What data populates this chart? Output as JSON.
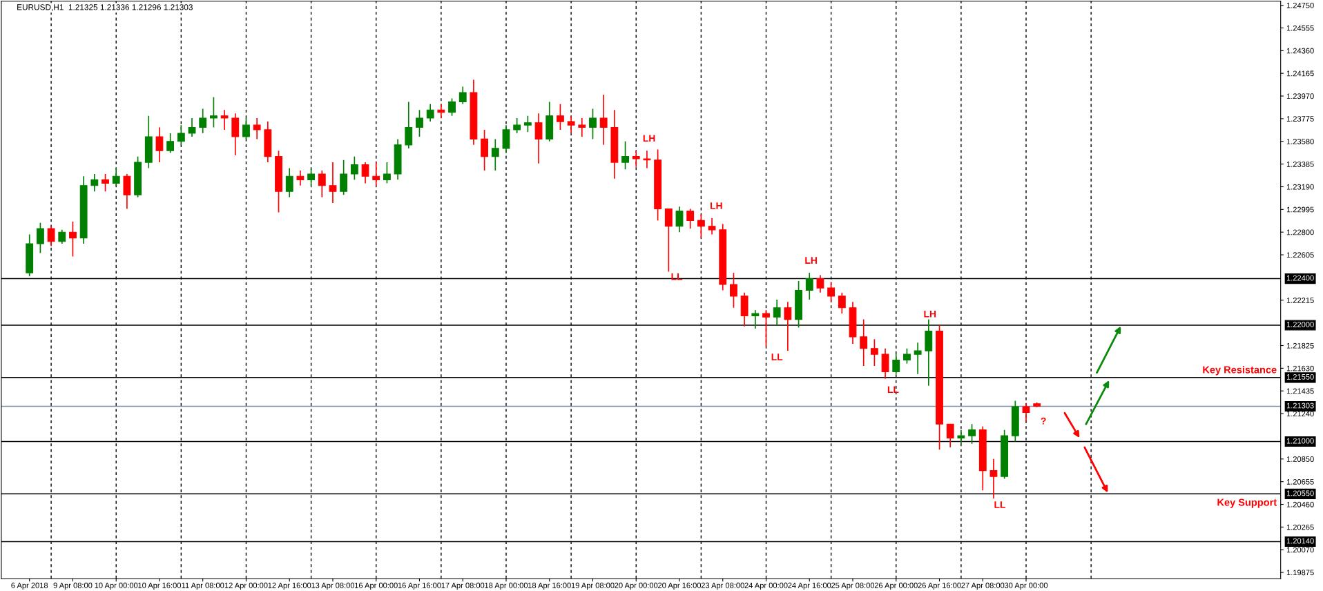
{
  "chart_data": {
    "type": "candlestick",
    "title": "EURUSD,H1  1.21325 1.21336 1.21296 1.21303",
    "categories": [
      "6 Apr 2018",
      null,
      null,
      null,
      "9 Apr 08:00",
      null,
      null,
      null,
      "10 Apr 00:00",
      null,
      null,
      null,
      "10 Apr 16:00",
      null,
      null,
      null,
      "11 Apr 08:00",
      null,
      null,
      null,
      "12 Apr 00:00",
      null,
      null,
      null,
      "12 Apr 16:00",
      null,
      null,
      null,
      "13 Apr 08:00",
      null,
      null,
      null,
      "16 Apr 00:00",
      null,
      null,
      null,
      "16 Apr 16:00",
      null,
      null,
      null,
      "17 Apr 08:00",
      null,
      null,
      null,
      "18 Apr 00:00",
      null,
      null,
      null,
      "18 Apr 16:00",
      null,
      null,
      null,
      "19 Apr 08:00",
      null,
      null,
      null,
      "20 Apr 00:00",
      null,
      null,
      null,
      "20 Apr 16:00",
      null,
      null,
      null,
      "23 Apr 08:00",
      null,
      null,
      null,
      "24 Apr 00:00",
      null,
      null,
      null,
      "24 Apr 16:00",
      null,
      null,
      null,
      "25 Apr 08:00",
      null,
      null,
      null,
      "26 Apr 00:00",
      null,
      null,
      null,
      "26 Apr 16:00",
      null,
      null,
      null,
      "27 Apr 08:00",
      null,
      null,
      null,
      "30 Apr 00:00",
      null,
      null,
      null,
      null,
      null,
      null,
      null,
      null,
      null,
      null,
      null,
      null,
      null,
      null,
      null,
      null,
      null,
      null,
      null,
      null,
      null,
      null,
      null
    ],
    "ohlc": [
      [
        1.2245,
        1.2278,
        1.2242,
        1.227
      ],
      [
        1.227,
        1.2288,
        1.2262,
        1.2283
      ],
      [
        1.2283,
        1.2285,
        1.2268,
        1.2272
      ],
      [
        1.2272,
        1.2282,
        1.227,
        1.228
      ],
      [
        1.228,
        1.2289,
        1.2259,
        1.2275
      ],
      [
        1.2275,
        1.2328,
        1.227,
        1.232
      ],
      [
        1.232,
        1.233,
        1.2315,
        1.2325
      ],
      [
        1.2325,
        1.233,
        1.2315,
        1.2322
      ],
      [
        1.2322,
        1.2335,
        1.232,
        1.2328
      ],
      [
        1.2328,
        1.233,
        1.23,
        1.2312
      ],
      [
        1.2312,
        1.2345,
        1.231,
        1.234
      ],
      [
        1.234,
        1.238,
        1.2335,
        1.2362
      ],
      [
        1.2362,
        1.237,
        1.234,
        1.235
      ],
      [
        1.235,
        1.2365,
        1.2348,
        1.2358
      ],
      [
        1.2358,
        1.2372,
        1.2355,
        1.2365
      ],
      [
        1.2365,
        1.2378,
        1.2362,
        1.237
      ],
      [
        1.237,
        1.2386,
        1.2365,
        1.2378
      ],
      [
        1.2378,
        1.2396,
        1.237,
        1.238
      ],
      [
        1.238,
        1.2385,
        1.2368,
        1.2378
      ],
      [
        1.2378,
        1.2382,
        1.2346,
        1.2362
      ],
      [
        1.2362,
        1.2378,
        1.236,
        1.2372
      ],
      [
        1.2372,
        1.2378,
        1.236,
        1.2368
      ],
      [
        1.2368,
        1.2375,
        1.234,
        1.2345
      ],
      [
        1.2345,
        1.235,
        1.2297,
        1.2315
      ],
      [
        1.2315,
        1.2335,
        1.231,
        1.2328
      ],
      [
        1.2328,
        1.2333,
        1.232,
        1.2325
      ],
      [
        1.2325,
        1.2335,
        1.232,
        1.233
      ],
      [
        1.233,
        1.2333,
        1.231,
        1.232
      ],
      [
        1.232,
        1.234,
        1.2305,
        1.2315
      ],
      [
        1.2315,
        1.2342,
        1.2312,
        1.233
      ],
      [
        1.233,
        1.2345,
        1.2325,
        1.2338
      ],
      [
        1.2338,
        1.234,
        1.2322,
        1.2328
      ],
      [
        1.2328,
        1.234,
        1.232,
        1.2325
      ],
      [
        1.2325,
        1.234,
        1.2322,
        1.233
      ],
      [
        1.233,
        1.236,
        1.2325,
        1.2355
      ],
      [
        1.2355,
        1.2392,
        1.2352,
        1.237
      ],
      [
        1.237,
        1.2385,
        1.2362,
        1.2378
      ],
      [
        1.2378,
        1.239,
        1.2375,
        1.2385
      ],
      [
        1.2385,
        1.239,
        1.2378,
        1.2383
      ],
      [
        1.2383,
        1.2395,
        1.238,
        1.2392
      ],
      [
        1.2392,
        1.2405,
        1.239,
        1.24
      ],
      [
        1.24,
        1.2411,
        1.2355,
        1.236
      ],
      [
        1.236,
        1.2368,
        1.2333,
        1.2345
      ],
      [
        1.2345,
        1.236,
        1.2333,
        1.2352
      ],
      [
        1.2352,
        1.2372,
        1.2348,
        1.2368
      ],
      [
        1.2368,
        1.2378,
        1.2365,
        1.2372
      ],
      [
        1.2372,
        1.238,
        1.2366,
        1.2374
      ],
      [
        1.2374,
        1.2382,
        1.2339,
        1.236
      ],
      [
        1.236,
        1.2392,
        1.2358,
        1.238
      ],
      [
        1.238,
        1.239,
        1.2368,
        1.2375
      ],
      [
        1.2375,
        1.238,
        1.2365,
        1.2372
      ],
      [
        1.2372,
        1.2378,
        1.2362,
        1.237
      ],
      [
        1.237,
        1.2386,
        1.236,
        1.2378
      ],
      [
        1.2378,
        1.2398,
        1.2355,
        1.237
      ],
      [
        1.237,
        1.2385,
        1.2326,
        1.234
      ],
      [
        1.234,
        1.2358,
        1.2334,
        1.2345
      ],
      [
        1.2345,
        1.235,
        1.2336,
        1.2343
      ],
      [
        1.2343,
        1.235,
        1.2335,
        1.2342
      ],
      [
        1.2342,
        1.2351,
        1.229,
        1.23
      ],
      [
        1.23,
        1.23,
        1.2246,
        1.2285
      ],
      [
        1.2285,
        1.2302,
        1.228,
        1.2298
      ],
      [
        1.2298,
        1.23,
        1.2283,
        1.229
      ],
      [
        1.229,
        1.2295,
        1.2275,
        1.2285
      ],
      [
        1.2285,
        1.2292,
        1.2278,
        1.2282
      ],
      [
        1.2282,
        1.2287,
        1.223,
        1.2235
      ],
      [
        1.2235,
        1.2245,
        1.2215,
        1.2225
      ],
      [
        1.2225,
        1.2228,
        1.2199,
        1.2208
      ],
      [
        1.2208,
        1.2213,
        1.2197,
        1.221
      ],
      [
        1.221,
        1.2213,
        1.2182,
        1.2207
      ],
      [
        1.2207,
        1.2222,
        1.22,
        1.2215
      ],
      [
        1.2215,
        1.222,
        1.2178,
        1.2205
      ],
      [
        1.2205,
        1.2238,
        1.2198,
        1.223
      ],
      [
        1.223,
        1.2245,
        1.2222,
        1.224
      ],
      [
        1.224,
        1.2243,
        1.2228,
        1.2232
      ],
      [
        1.2232,
        1.2237,
        1.222,
        1.2225
      ],
      [
        1.2225,
        1.2228,
        1.221,
        1.2215
      ],
      [
        1.2215,
        1.222,
        1.2184,
        1.219
      ],
      [
        1.219,
        1.2205,
        1.2165,
        1.218
      ],
      [
        1.218,
        1.2188,
        1.2165,
        1.2175
      ],
      [
        1.2175,
        1.218,
        1.2154,
        1.216
      ],
      [
        1.216,
        1.2175,
        1.2158,
        1.217
      ],
      [
        1.217,
        1.218,
        1.2167,
        1.2175
      ],
      [
        1.2175,
        1.2185,
        1.2158,
        1.2178
      ],
      [
        1.2178,
        1.2205,
        1.2148,
        1.2195
      ],
      [
        1.2195,
        1.22,
        1.2093,
        1.2115
      ],
      [
        1.2115,
        1.2115,
        1.2095,
        1.2103
      ],
      [
        1.2103,
        1.211,
        1.2098,
        1.2105
      ],
      [
        1.2105,
        1.2115,
        1.2098,
        1.211
      ],
      [
        1.211,
        1.2113,
        1.2058,
        1.2075
      ],
      [
        1.2075,
        1.2085,
        1.2051,
        1.207
      ],
      [
        1.207,
        1.211,
        1.2068,
        1.2105
      ],
      [
        1.2105,
        1.2135,
        1.21,
        1.213
      ],
      [
        1.213,
        1.2133,
        1.2117,
        1.2125
      ],
      [
        1.21325,
        1.21336,
        1.21296,
        1.21303
      ],
      null,
      null,
      null,
      null,
      null,
      null,
      null,
      null,
      null,
      null,
      null,
      null,
      null,
      null,
      null,
      null,
      null,
      null,
      null,
      null,
      null,
      null
    ],
    "ylim": [
      1.19822,
      1.24785
    ],
    "yticks": [
      {
        "value": 1.2475,
        "label": "1.24750"
      },
      {
        "value": 1.24555,
        "label": "1.24555"
      },
      {
        "value": 1.2436,
        "label": "1.24360"
      },
      {
        "value": 1.24165,
        "label": "1.24165"
      },
      {
        "value": 1.2397,
        "label": "1.23970"
      },
      {
        "value": 1.23775,
        "label": "1.23775"
      },
      {
        "value": 1.2358,
        "label": "1.23580"
      },
      {
        "value": 1.23385,
        "label": "1.23385"
      },
      {
        "value": 1.2319,
        "label": "1.23190"
      },
      {
        "value": 1.22995,
        "label": "1.22995"
      },
      {
        "value": 1.228,
        "label": "1.22800"
      },
      {
        "value": 1.22605,
        "label": "1.22605"
      },
      {
        "value": 1.22215,
        "label": "1.22215"
      },
      {
        "value": 1.21825,
        "label": "1.21825"
      },
      {
        "value": 1.2163,
        "label": "1.21630"
      },
      {
        "value": 1.21435,
        "label": "1.21435"
      },
      {
        "value": 1.2124,
        "label": "1.21240"
      },
      {
        "value": 1.2085,
        "label": "1.20850"
      },
      {
        "value": 1.20655,
        "label": "1.20655"
      },
      {
        "value": 1.2046,
        "label": "1.20460"
      },
      {
        "value": 1.20265,
        "label": "1.20265"
      },
      {
        "value": 1.2007,
        "label": "1.20070"
      },
      {
        "value": 1.19875,
        "label": "1.19875"
      }
    ],
    "ref_lines": [
      {
        "axis": "y",
        "value": 1.224,
        "label": "1.22400",
        "color": "#000000",
        "line_style": "solid"
      },
      {
        "axis": "y",
        "value": 1.22,
        "label": "1.22000",
        "color": "#000000",
        "line_style": "solid"
      },
      {
        "axis": "y",
        "value": 1.2155,
        "label": "1.21550",
        "color": "#000000",
        "line_style": "solid"
      },
      {
        "axis": "y",
        "value": 1.21303,
        "label": "1.21303",
        "color": "#7b8dab",
        "line_style": "solid"
      },
      {
        "axis": "y",
        "value": 1.21,
        "label": "1.21000",
        "color": "#000000",
        "line_style": "solid"
      },
      {
        "axis": "y",
        "value": 1.2055,
        "label": "1.20550",
        "color": "#000000",
        "line_style": "solid"
      },
      {
        "axis": "y",
        "value": 1.2014,
        "label": "1.20140",
        "color": "#000000",
        "line_style": "solid"
      }
    ],
    "annotations": [
      "LH",
      "LL",
      "LH",
      "LL",
      "LH",
      "LL",
      "LH",
      "LL",
      "?",
      "Key Resistance",
      "Key Support"
    ],
    "legend": false,
    "grid": "x"
  }
}
